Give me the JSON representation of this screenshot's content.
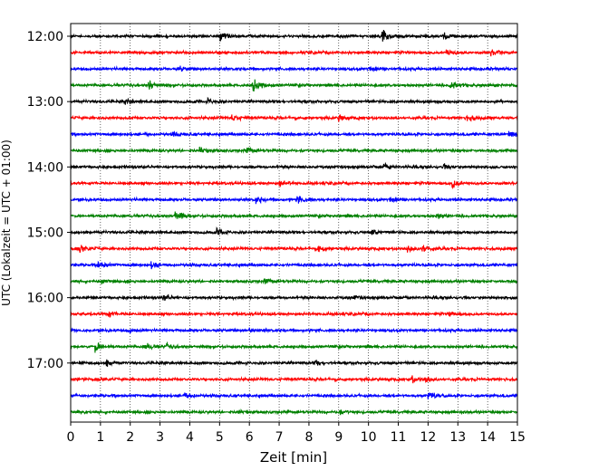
{
  "chart_data": {
    "type": "line",
    "title": "",
    "xlabel": "Zeit  [min]",
    "ylabel": "UTC (Lokalzeit = UTC + 01:00)",
    "xlim": [
      0,
      15
    ],
    "x_ticks": [
      "0",
      "1",
      "2",
      "3",
      "4",
      "5",
      "6",
      "7",
      "8",
      "9",
      "10",
      "11",
      "12",
      "13",
      "14",
      "15"
    ],
    "y_tick_labels": [
      "12:00",
      "13:00",
      "14:00",
      "15:00",
      "16:00",
      "17:00"
    ],
    "grid": "vertical-dotted",
    "trace_interval_minutes": 15,
    "trace_colors": [
      "#000000",
      "#ff0000",
      "#0000ff",
      "#008000"
    ],
    "traces": [
      {
        "start": "12:00",
        "color": "#000000",
        "events": [
          {
            "t": 5.0,
            "amp": 0.6
          },
          {
            "t": 10.45,
            "amp": 0.7
          },
          {
            "t": 12.5,
            "amp": 0.6
          }
        ]
      },
      {
        "start": "12:15",
        "color": "#ff0000",
        "events": [
          {
            "t": 12.6,
            "amp": 0.45
          },
          {
            "t": 14.1,
            "amp": 0.35
          }
        ]
      },
      {
        "start": "12:30",
        "color": "#0000ff",
        "events": [
          {
            "t": 3.6,
            "amp": 0.3
          },
          {
            "t": 10.0,
            "amp": 0.3
          }
        ]
      },
      {
        "start": "12:45",
        "color": "#008000",
        "events": [
          {
            "t": 2.6,
            "amp": 0.5
          },
          {
            "t": 6.1,
            "amp": 0.8
          },
          {
            "t": 12.7,
            "amp": 0.6
          }
        ]
      },
      {
        "start": "13:00",
        "color": "#000000",
        "events": [
          {
            "t": 1.8,
            "amp": 0.35
          },
          {
            "t": 4.6,
            "amp": 0.3
          }
        ]
      },
      {
        "start": "13:15",
        "color": "#ff0000",
        "events": [
          {
            "t": 5.4,
            "amp": 0.4
          },
          {
            "t": 9.0,
            "amp": 0.35
          },
          {
            "t": 13.3,
            "amp": 0.4
          }
        ]
      },
      {
        "start": "13:30",
        "color": "#0000ff",
        "events": [
          {
            "t": 3.4,
            "amp": 0.25
          },
          {
            "t": 14.7,
            "amp": 0.3
          }
        ]
      },
      {
        "start": "13:45",
        "color": "#008000",
        "events": [
          {
            "t": 4.3,
            "amp": 0.6
          },
          {
            "t": 5.9,
            "amp": 0.3
          }
        ]
      },
      {
        "start": "14:00",
        "color": "#000000",
        "events": [
          {
            "t": 10.5,
            "amp": 0.3
          },
          {
            "t": 12.5,
            "amp": 0.3
          }
        ]
      },
      {
        "start": "14:15",
        "color": "#ff0000",
        "events": [
          {
            "t": 12.8,
            "amp": 0.5
          },
          {
            "t": 7.0,
            "amp": 0.3
          }
        ]
      },
      {
        "start": "14:30",
        "color": "#0000ff",
        "events": [
          {
            "t": 6.2,
            "amp": 0.45
          },
          {
            "t": 7.6,
            "amp": 0.45
          },
          {
            "t": 10.7,
            "amp": 0.3
          }
        ]
      },
      {
        "start": "14:45",
        "color": "#008000",
        "events": [
          {
            "t": 3.5,
            "amp": 0.8
          },
          {
            "t": 12.3,
            "amp": 0.25
          }
        ]
      },
      {
        "start": "15:00",
        "color": "#000000",
        "events": [
          {
            "t": 4.9,
            "amp": 0.35
          },
          {
            "t": 10.1,
            "amp": 0.3
          }
        ]
      },
      {
        "start": "15:15",
        "color": "#ff0000",
        "events": [
          {
            "t": 0.3,
            "amp": 0.35
          },
          {
            "t": 8.3,
            "amp": 0.4
          },
          {
            "t": 11.3,
            "amp": 0.45
          },
          {
            "t": 11.8,
            "amp": 0.6
          }
        ]
      },
      {
        "start": "15:30",
        "color": "#0000ff",
        "events": [
          {
            "t": 0.9,
            "amp": 0.45
          },
          {
            "t": 2.7,
            "amp": 0.35
          }
        ]
      },
      {
        "start": "15:45",
        "color": "#008000",
        "events": [
          {
            "t": 6.5,
            "amp": 0.3
          },
          {
            "t": 1.0,
            "amp": 0.3
          }
        ]
      },
      {
        "start": "16:00",
        "color": "#000000",
        "events": [
          {
            "t": 3.1,
            "amp": 0.3
          },
          {
            "t": 9.5,
            "amp": 0.25
          }
        ]
      },
      {
        "start": "16:15",
        "color": "#ff0000",
        "events": [
          {
            "t": 1.2,
            "amp": 0.35
          },
          {
            "t": 12.7,
            "amp": 0.3
          }
        ]
      },
      {
        "start": "16:30",
        "color": "#0000ff",
        "events": [
          {
            "t": 6.0,
            "amp": 0.3
          },
          {
            "t": 1.9,
            "amp": 0.25
          }
        ]
      },
      {
        "start": "16:45",
        "color": "#008000",
        "events": [
          {
            "t": 0.8,
            "amp": 0.7
          },
          {
            "t": 2.5,
            "amp": 0.45
          },
          {
            "t": 3.2,
            "amp": 0.3
          }
        ]
      },
      {
        "start": "17:00",
        "color": "#000000",
        "events": [
          {
            "t": 1.2,
            "amp": 0.35
          },
          {
            "t": 8.2,
            "amp": 0.25
          }
        ]
      },
      {
        "start": "17:15",
        "color": "#ff0000",
        "events": [
          {
            "t": 11.4,
            "amp": 0.45
          },
          {
            "t": 11.9,
            "amp": 0.3
          }
        ]
      },
      {
        "start": "17:30",
        "color": "#0000ff",
        "events": [
          {
            "t": 12.0,
            "amp": 0.5
          },
          {
            "t": 3.8,
            "amp": 0.3
          }
        ]
      },
      {
        "start": "17:45",
        "color": "#008000",
        "events": [
          {
            "t": 5.6,
            "amp": 0.3
          },
          {
            "t": 9.0,
            "amp": 0.25
          }
        ]
      }
    ]
  }
}
